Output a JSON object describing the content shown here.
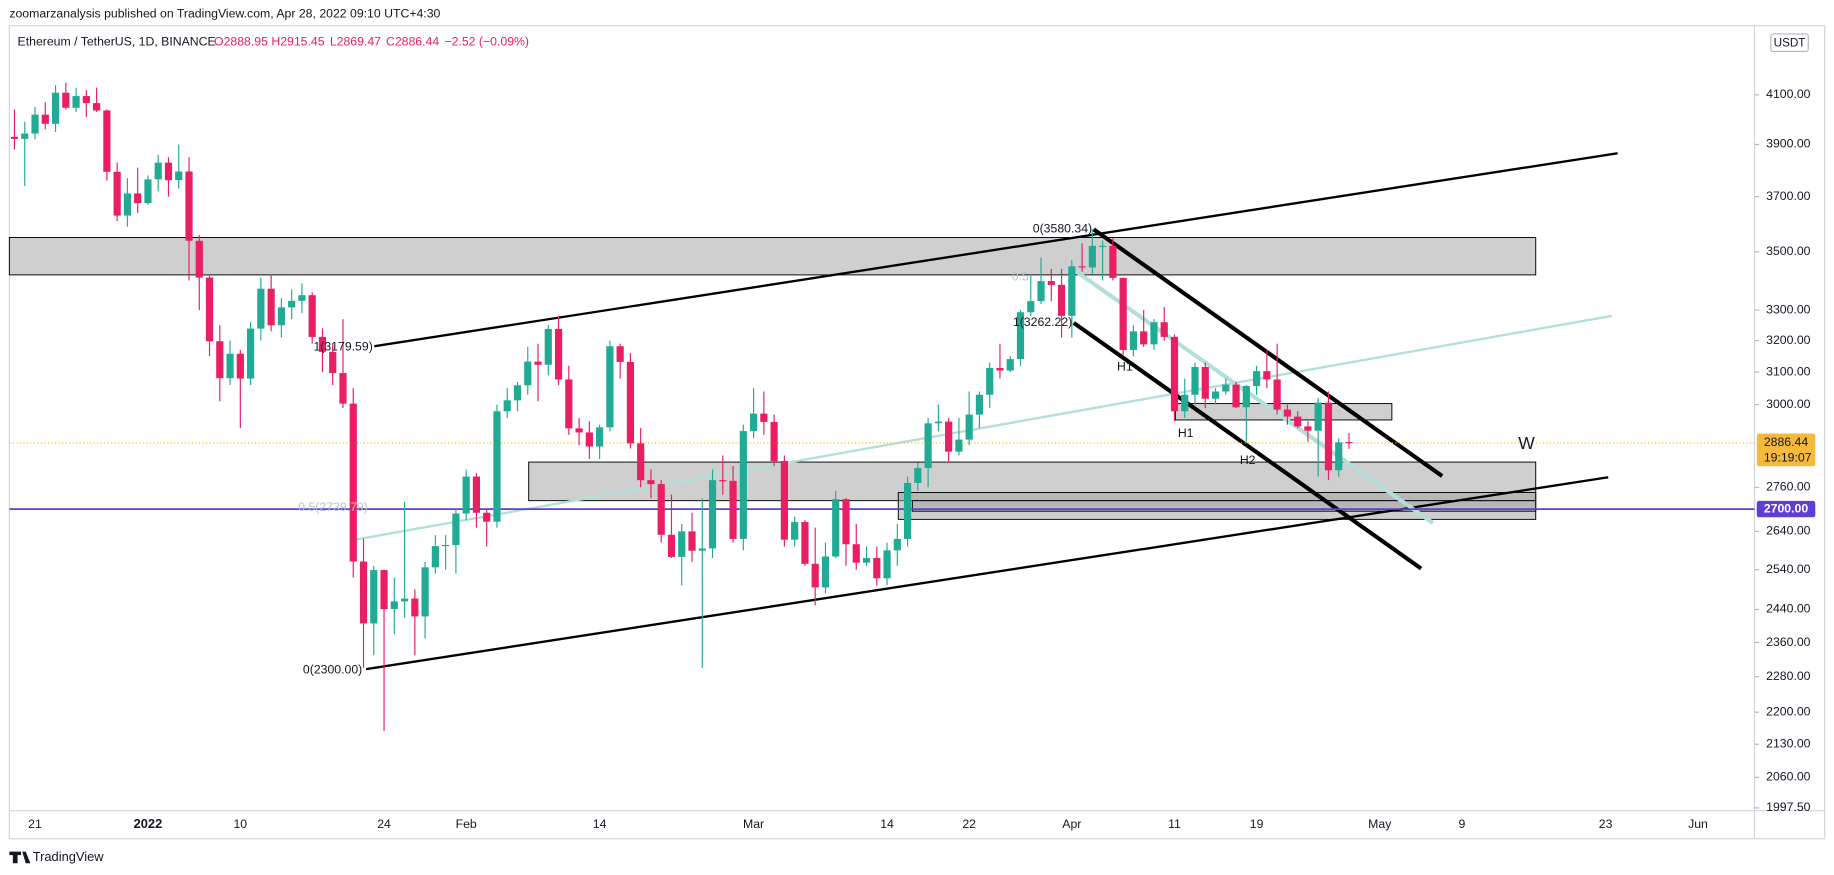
{
  "header": {
    "publisher": "zoomarzanalysis published on TradingView.com, Apr 28, 2022 09:10 UTC+4:30"
  },
  "chart_data": {
    "type": "candlestick",
    "symbol": "Ethereum / TetherUS, 1D, BINANCE",
    "legend_values": [
      "O2888.95",
      "H2915.45",
      "L2869.47",
      "C2886.44",
      "−2.52 (−0.09%)"
    ],
    "currency": "USDT",
    "log_scale": true,
    "up_color": "#22ab94",
    "down_color": "#e91e63",
    "categories": [
      null,
      null,
      "21",
      null,
      null,
      null,
      null,
      null,
      null,
      null,
      null,
      null,
      null,
      "2022",
      null,
      null,
      null,
      null,
      null,
      null,
      null,
      null,
      "10",
      null,
      null,
      null,
      null,
      null,
      null,
      null,
      null,
      null,
      null,
      null,
      null,
      null,
      "24",
      null,
      null,
      null,
      null,
      null,
      null,
      null,
      "Feb",
      null,
      null,
      null,
      null,
      null,
      null,
      null,
      null,
      null,
      null,
      null,
      null,
      "14",
      null,
      null,
      null,
      null,
      null,
      null,
      null,
      null,
      null,
      null,
      null,
      null,
      null,
      null,
      "Mar",
      null,
      null,
      null,
      null,
      null,
      null,
      null,
      null,
      null,
      null,
      null,
      null,
      "14",
      null,
      null,
      null,
      null,
      null,
      null,
      null,
      "22",
      null,
      null,
      null,
      null,
      null,
      null,
      null,
      null,
      null,
      "Apr",
      null,
      null,
      null,
      null,
      null,
      null,
      null,
      null,
      null,
      "11",
      null,
      null,
      null,
      null,
      null,
      null,
      null,
      "19",
      null,
      null,
      null,
      null,
      null,
      null,
      null,
      null,
      null,
      null,
      null,
      "May",
      null,
      null,
      null,
      null,
      null,
      null,
      null,
      "9",
      null,
      null,
      null,
      null,
      null,
      null,
      null,
      null,
      null,
      null,
      null,
      null,
      null,
      "23",
      null,
      null,
      null,
      null,
      null,
      null,
      null,
      null,
      "Jun",
      null,
      null,
      null,
      null,
      null
    ],
    "open": [
      3930,
      3922,
      3943,
      4019,
      3982,
      4109,
      4047,
      4095,
      4066,
      4036,
      3794,
      3630,
      3712,
      3676,
      3765,
      3829,
      3762,
      3795,
      3539,
      3410,
      3198,
      3081,
      3158,
      3080,
      3239,
      3372,
      3250,
      3309,
      3331,
      3350,
      3212,
      3164,
      3097,
      3003,
      2561,
      2406,
      2539,
      2441,
      2460,
      2467,
      2423,
      2546,
      2601,
      2604,
      2688,
      2790,
      2690,
      2666,
      2980,
      3013,
      3059,
      3133,
      3123,
      3238,
      3077,
      2929,
      2917,
      2876,
      2932,
      3182,
      3132,
      2885,
      2780,
      2769,
      2631,
      2573,
      2640,
      2589,
      2595,
      2780,
      2778,
      2620,
      2921,
      2973,
      2948,
      2834,
      2618,
      2665,
      2555,
      2495,
      2574,
      2727,
      2606,
      2558,
      2570,
      2518,
      2590,
      2620,
      2772,
      2814,
      2944,
      2949,
      2861,
      2896,
      2970,
      3030,
      3113,
      3105,
      3141,
      3293,
      3330,
      3398,
      3385,
      3281,
      3449,
      3445,
      3521,
      3521,
      3409,
      3170,
      3230,
      3188,
      3260,
      3212,
      2980,
      3030,
      3116,
      3018,
      3040,
      3061,
      2992,
      3057,
      3103,
      3077,
      2985,
      2964,
      2935,
      2922,
      3006,
      2808,
      2888.95,
      null,
      null,
      null,
      null,
      null,
      null,
      null,
      null,
      null,
      null,
      null,
      null,
      null,
      null,
      null,
      null,
      null,
      null,
      null,
      null,
      null,
      null,
      null,
      null,
      null,
      null,
      null,
      null,
      null,
      null,
      null,
      null,
      null,
      null,
      null,
      null,
      null,
      null,
      null
    ],
    "high": [
      4040,
      3990,
      4050,
      4070,
      4140,
      4150,
      4130,
      4120,
      4130,
      4040,
      3830,
      3770,
      3810,
      3780,
      3860,
      3850,
      3900,
      3850,
      3560,
      3420,
      3250,
      3200,
      3170,
      3260,
      3410,
      3420,
      3340,
      3370,
      3390,
      3360,
      3240,
      3190,
      3270,
      3050,
      2620,
      2550,
      2540,
      2520,
      2720,
      2490,
      2560,
      2630,
      2630,
      2700,
      2810,
      2800,
      2700,
      3000,
      3050,
      3070,
      3180,
      3190,
      3250,
      3280,
      3120,
      2960,
      2950,
      2940,
      3200,
      3190,
      3160,
      2930,
      2810,
      2780,
      2740,
      2660,
      2690,
      2730,
      2810,
      2850,
      2820,
      2940,
      3050,
      3040,
      2970,
      2850,
      2680,
      2670,
      2650,
      2610,
      2750,
      2730,
      2660,
      2600,
      2600,
      2610,
      2660,
      2790,
      2830,
      2960,
      3000,
      2960,
      2960,
      3040,
      3040,
      3130,
      3190,
      3150,
      3300,
      3420,
      3480,
      3440,
      3440,
      3470,
      3530,
      3580,
      3540,
      3550,
      3410,
      3250,
      3300,
      3270,
      3310,
      3220,
      3080,
      3130,
      3130,
      3050,
      3080,
      3070,
      3060,
      3120,
      3170,
      3190,
      3000,
      2980,
      2950,
      3020,
      3040,
      2900,
      2915.45,
      null,
      null,
      null,
      null,
      null,
      null,
      null,
      null,
      null,
      null,
      null,
      null,
      null,
      null,
      null,
      null,
      null,
      null,
      null,
      null,
      null,
      null,
      null,
      null,
      null,
      null,
      null,
      null,
      null,
      null,
      null,
      null,
      null,
      null,
      null,
      null,
      null,
      null,
      null
    ],
    "low": [
      3880,
      3740,
      3920,
      3960,
      3950,
      4040,
      4030,
      4010,
      4030,
      3760,
      3610,
      3590,
      3640,
      3670,
      3720,
      3700,
      3730,
      3400,
      3300,
      3150,
      3010,
      3060,
      2930,
      3060,
      3200,
      3230,
      3210,
      3270,
      3290,
      3190,
      3100,
      3060,
      2990,
      2520,
      2300,
      2330,
      2159,
      2380,
      2420,
      2330,
      2370,
      2530,
      2540,
      2530,
      2670,
      2650,
      2600,
      2650,
      2960,
      2980,
      3030,
      3010,
      3090,
      3060,
      2910,
      2880,
      2840,
      2840,
      2920,
      3080,
      2870,
      2760,
      2730,
      2610,
      2570,
      2500,
      2560,
      2300,
      2570,
      2740,
      2610,
      2590,
      2900,
      2910,
      2820,
      2600,
      2600,
      2550,
      2450,
      2480,
      2570,
      2550,
      2540,
      2550,
      2500,
      2500,
      2550,
      2600,
      2750,
      2760,
      2920,
      2830,
      2850,
      2880,
      2930,
      2990,
      3080,
      3100,
      3120,
      3280,
      3320,
      3330,
      3210,
      3210,
      3430,
      3420,
      3400,
      3400,
      3150,
      3150,
      3180,
      3170,
      3200,
      2950,
      2960,
      3000,
      2990,
      3000,
      3030,
      2990,
      2890,
      3030,
      3050,
      2970,
      2940,
      2930,
      2890,
      2790,
      2780,
      2790,
      2869.47,
      null,
      null,
      null,
      null,
      null,
      null,
      null,
      null,
      null,
      null,
      null,
      null,
      null,
      null,
      null,
      null,
      null,
      null,
      null,
      null,
      null,
      null,
      null,
      null,
      null,
      null,
      null,
      null,
      null,
      null,
      null,
      null,
      null,
      null,
      null,
      null,
      null,
      null,
      null
    ],
    "close": [
      3922,
      3943,
      4019,
      3982,
      4109,
      4047,
      4095,
      4066,
      4036,
      3794,
      3630,
      3712,
      3676,
      3765,
      3829,
      3762,
      3795,
      3539,
      3410,
      3198,
      3081,
      3158,
      3080,
      3239,
      3372,
      3250,
      3309,
      3331,
      3350,
      3212,
      3164,
      3097,
      3003,
      2561,
      2406,
      2539,
      2441,
      2460,
      2467,
      2423,
      2546,
      2601,
      2604,
      2688,
      2790,
      2690,
      2666,
      2980,
      3013,
      3059,
      3133,
      3123,
      3238,
      3077,
      2929,
      2917,
      2876,
      2932,
      3182,
      3132,
      2885,
      2780,
      2769,
      2631,
      2573,
      2640,
      2589,
      2595,
      2780,
      2778,
      2620,
      2921,
      2973,
      2948,
      2834,
      2618,
      2665,
      2555,
      2495,
      2574,
      2727,
      2606,
      2558,
      2570,
      2518,
      2590,
      2620,
      2772,
      2814,
      2944,
      2949,
      2861,
      2896,
      2970,
      3030,
      3113,
      3105,
      3141,
      3293,
      3330,
      3398,
      3385,
      3281,
      3449,
      3445,
      3521,
      3521,
      3409,
      3170,
      3230,
      3188,
      3260,
      3212,
      2980,
      3030,
      3116,
      3018,
      3040,
      3061,
      2992,
      3057,
      3103,
      3077,
      2985,
      2964,
      2935,
      2922,
      3006,
      2808,
      2888,
      2886.44,
      null,
      null,
      null,
      null,
      null,
      null,
      null,
      null,
      null,
      null,
      null,
      null,
      null,
      null,
      null,
      null,
      null,
      null,
      null,
      null,
      null,
      null,
      null,
      null,
      null,
      null,
      null,
      null,
      null,
      null,
      null,
      null,
      null,
      null,
      null,
      null,
      null,
      null,
      null
    ],
    "ylim": [
      1992,
      4396
    ],
    "yticks": [
      {
        "value": 4100,
        "label": "4100.00"
      },
      {
        "value": 3900,
        "label": "3900.00"
      },
      {
        "value": 3700,
        "label": "3700.00"
      },
      {
        "value": 3500,
        "label": "3500.00"
      },
      {
        "value": 3300,
        "label": "3300.00"
      },
      {
        "value": 3200,
        "label": "3200.00"
      },
      {
        "value": 3100,
        "label": "3100.00"
      },
      {
        "value": 3000,
        "label": "3000.00"
      },
      {
        "value": 2760,
        "label": "2760.00"
      },
      {
        "value": 2640,
        "label": "2640.00"
      },
      {
        "value": 2540,
        "label": "2540.00"
      },
      {
        "value": 2440,
        "label": "2440.00"
      },
      {
        "value": 2360,
        "label": "2360.00"
      },
      {
        "value": 2280,
        "label": "2280.00"
      },
      {
        "value": 2200,
        "label": "2200.00"
      },
      {
        "value": 2130,
        "label": "2130.00"
      },
      {
        "value": 2060,
        "label": "2060.00"
      },
      {
        "value": 1997.5,
        "label": "1997.50"
      }
    ],
    "last_price": {
      "value": 2886.44,
      "label": "2886.44",
      "countdown": "19:19:07",
      "color": "#f5b93b"
    },
    "price_line": {
      "value": 2700,
      "label": "2700.00",
      "color": "#5d3fd3"
    },
    "annotations": [
      "0(3580.34)",
      "1(3262.22)",
      "1(3179.59)",
      "0(2300.00)",
      "0.5(2739.79)",
      "0.5",
      "H1",
      "H1",
      "H2",
      "W"
    ]
  },
  "footer": {
    "brand": "TradingView"
  }
}
